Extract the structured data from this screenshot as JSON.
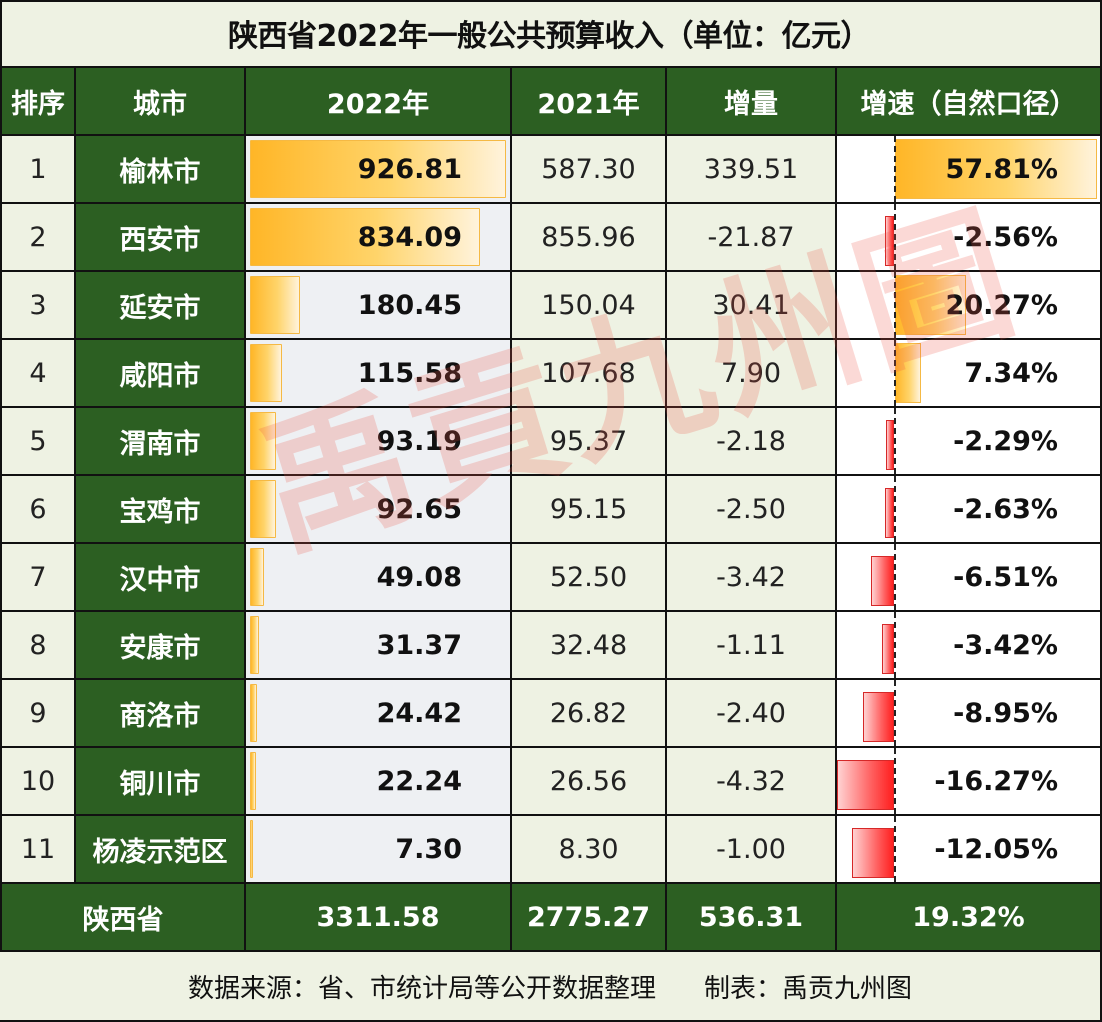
{
  "title": "陕西省2022年一般公共预算收入（单位：亿元）",
  "headers": {
    "rank": "排序",
    "city": "城市",
    "y2022": "2022年",
    "y2021": "2021年",
    "increase": "增量",
    "growth": "增速（自然口径）"
  },
  "rows": [
    {
      "rank": "1",
      "city": "榆林市",
      "y2022": "926.81",
      "y2021": "587.30",
      "increase": "339.51",
      "growth": "57.81%"
    },
    {
      "rank": "2",
      "city": "西安市",
      "y2022": "834.09",
      "y2021": "855.96",
      "increase": "-21.87",
      "growth": "-2.56%"
    },
    {
      "rank": "3",
      "city": "延安市",
      "y2022": "180.45",
      "y2021": "150.04",
      "increase": "30.41",
      "growth": "20.27%"
    },
    {
      "rank": "4",
      "city": "咸阳市",
      "y2022": "115.58",
      "y2021": "107.68",
      "increase": "7.90",
      "growth": "7.34%"
    },
    {
      "rank": "5",
      "city": "渭南市",
      "y2022": "93.19",
      "y2021": "95.37",
      "increase": "-2.18",
      "growth": "-2.29%"
    },
    {
      "rank": "6",
      "city": "宝鸡市",
      "y2022": "92.65",
      "y2021": "95.15",
      "increase": "-2.50",
      "growth": "-2.63%"
    },
    {
      "rank": "7",
      "city": "汉中市",
      "y2022": "49.08",
      "y2021": "52.50",
      "increase": "-3.42",
      "growth": "-6.51%"
    },
    {
      "rank": "8",
      "city": "安康市",
      "y2022": "31.37",
      "y2021": "32.48",
      "increase": "-1.11",
      "growth": "-3.42%"
    },
    {
      "rank": "9",
      "city": "商洛市",
      "y2022": "24.42",
      "y2021": "26.82",
      "increase": "-2.40",
      "growth": "-8.95%"
    },
    {
      "rank": "10",
      "city": "铜川市",
      "y2022": "22.24",
      "y2021": "26.56",
      "increase": "-4.32",
      "growth": "-16.27%"
    },
    {
      "rank": "11",
      "city": "杨凌示范区",
      "y2022": "7.30",
      "y2021": "8.30",
      "increase": "-1.00",
      "growth": "-12.05%"
    }
  ],
  "total": {
    "label": "陕西省",
    "y2022": "3311.58",
    "y2021": "2775.27",
    "increase": "536.31",
    "growth": "19.32%"
  },
  "footer": {
    "source": "数据来源：省、市统计局等公开数据整理",
    "author": "制表：禹贡九州图"
  },
  "watermark": "禹貢九州圖",
  "colors": {
    "header_green": "#2c5f22",
    "bar_orange": "#ffb627",
    "bar_red": "#ff1f1f",
    "background": "#eef2e3"
  },
  "chart_data": {
    "type": "table",
    "title": "陕西省2022年一般公共预算收入（单位：亿元）",
    "columns": [
      "排序",
      "城市",
      "2022年",
      "2021年",
      "增量",
      "增速（自然口径）"
    ],
    "categories": [
      "榆林市",
      "西安市",
      "延安市",
      "咸阳市",
      "渭南市",
      "宝鸡市",
      "汉中市",
      "安康市",
      "商洛市",
      "铜川市",
      "杨凌示范区"
    ],
    "series": [
      {
        "name": "2022年",
        "values": [
          926.81,
          834.09,
          180.45,
          115.58,
          93.19,
          92.65,
          49.08,
          31.37,
          24.42,
          22.24,
          7.3
        ]
      },
      {
        "name": "2021年",
        "values": [
          587.3,
          855.96,
          150.04,
          107.68,
          95.37,
          95.15,
          52.5,
          32.48,
          26.82,
          26.56,
          8.3
        ]
      },
      {
        "name": "增量",
        "values": [
          339.51,
          -21.87,
          30.41,
          7.9,
          -2.18,
          -2.5,
          -3.42,
          -1.11,
          -2.4,
          -4.32,
          -1.0
        ]
      },
      {
        "name": "增速（%）",
        "values": [
          57.81,
          -2.56,
          20.27,
          7.34,
          -2.29,
          -2.63,
          -6.51,
          -3.42,
          -8.95,
          -16.27,
          -12.05
        ]
      }
    ],
    "total": {
      "label": "陕西省",
      "2022年": 3311.58,
      "2021年": 2775.27,
      "增量": 536.31,
      "增速（%）": 19.32
    }
  }
}
